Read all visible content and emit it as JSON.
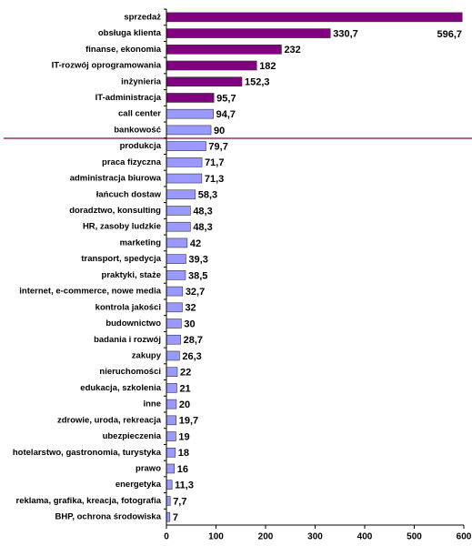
{
  "chart_data": {
    "type": "bar",
    "orientation": "horizontal",
    "categories": [
      "sprzedaż",
      "obsługa klienta",
      "finanse, ekonomia",
      "IT-rozwój oprogramowania",
      "inżynieria",
      "IT-administracja",
      "call center",
      "bankowość",
      "produkcja",
      "praca fizyczna",
      "administracja biurowa",
      "łańcuch dostaw",
      "doradztwo, konsulting",
      "HR, zasoby ludzkie",
      "marketing",
      "transport, spedycja",
      "praktyki, staże",
      "internet, e-commerce, nowe media",
      "kontrola jakości",
      "budownictwo",
      "badania i rozwój",
      "zakupy",
      "nieruchomości",
      "edukacja, szkolenia",
      "inne",
      "zdrowie, uroda, rekreacja",
      "ubezpieczenia",
      "hotelarstwo, gastronomia, turystyka",
      "prawo",
      "energetyka",
      "reklama, grafika, kreacja, fotografia",
      "BHP, ochrona środowiska"
    ],
    "values": [
      596.7,
      330.7,
      232,
      182,
      152.3,
      95.7,
      94.7,
      90,
      79.7,
      71.7,
      71.3,
      58.3,
      48.3,
      48.3,
      42,
      39.3,
      38.5,
      32.7,
      32,
      30,
      28.7,
      26.3,
      22,
      21,
      20,
      19.7,
      19,
      18,
      16,
      11.3,
      7.7,
      7
    ],
    "value_labels": [
      "596,7",
      "330,7",
      "232",
      "182",
      "152,3",
      "95,7",
      "94,7",
      "90",
      "79,7",
      "71,7",
      "71,3",
      "58,3",
      "48,3",
      "48,3",
      "42",
      "39,3",
      "38,5",
      "32,7",
      "32",
      "30",
      "28,7",
      "26,3",
      "22",
      "21",
      "20",
      "19,7",
      "19",
      "18",
      "16",
      "11,3",
      "7,7",
      "7"
    ],
    "colors": [
      "#800080",
      "#800080",
      "#800080",
      "#800080",
      "#800080",
      "#800080",
      "#9999ff",
      "#9999ff",
      "#9999ff",
      "#9999ff",
      "#9999ff",
      "#9999ff",
      "#9999ff",
      "#9999ff",
      "#9999ff",
      "#9999ff",
      "#9999ff",
      "#9999ff",
      "#9999ff",
      "#9999ff",
      "#9999ff",
      "#9999ff",
      "#9999ff",
      "#9999ff",
      "#9999ff",
      "#9999ff",
      "#9999ff",
      "#9999ff",
      "#9999ff",
      "#9999ff",
      "#9999ff",
      "#9999ff"
    ],
    "xlim": [
      0,
      600
    ],
    "xticks": [
      0,
      100,
      200,
      300,
      400,
      500,
      600
    ],
    "grid": false
  }
}
